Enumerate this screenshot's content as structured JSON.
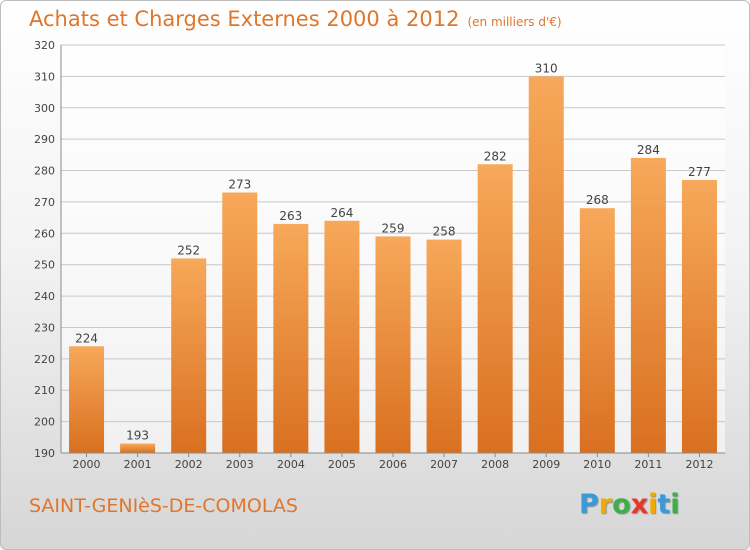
{
  "header": {
    "title": "Achats et Charges Externes 2000 à 2012",
    "unit": "(en milliers d'€)"
  },
  "footer": {
    "city": "SAINT-GENIèS-DE-COMOLAS",
    "logo_letters": [
      "P",
      "r",
      "o",
      "x",
      "i",
      "t",
      "i"
    ],
    "logo_colors": [
      "#3a9ad9",
      "#f2a900",
      "#3fae49",
      "#e8382b",
      "#f2a900",
      "#3a9ad9",
      "#3fae49"
    ]
  },
  "chart_data": {
    "type": "bar",
    "categories": [
      "2000",
      "2001",
      "2002",
      "2003",
      "2004",
      "2005",
      "2006",
      "2007",
      "2008",
      "2009",
      "2010",
      "2011",
      "2012"
    ],
    "values": [
      224,
      193,
      252,
      273,
      263,
      264,
      259,
      258,
      282,
      310,
      268,
      284,
      277
    ],
    "title": "Achats et Charges Externes 2000 à 2012",
    "subtitle": "(en milliers d'€)",
    "ylim": [
      190,
      320
    ],
    "yticks": [
      190,
      200,
      210,
      220,
      230,
      240,
      250,
      260,
      270,
      280,
      290,
      300,
      310,
      320
    ],
    "grid": true,
    "colors": {
      "bar_light": "#f7a85a",
      "bar_dark": "#d97020",
      "grid": "#c8c8c8",
      "axis": "#8a8a8a",
      "text": "#444444"
    }
  }
}
